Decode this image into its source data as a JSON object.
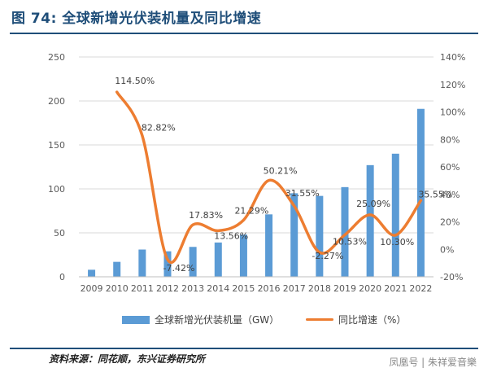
{
  "figure": {
    "title": "图 74: 全球新增光伏装机量及同比增速",
    "source": "资料来源：同花顺，东兴证券研究所",
    "watermark": "凤凰号 | 朱祥爱音樂"
  },
  "colors": {
    "bar": "#5b9bd5",
    "line": "#ed7d31",
    "title": "#1f4e79",
    "grid": "#d9d9d9",
    "axis_text": "#595959"
  },
  "chart_data": {
    "type": "bar",
    "categories": [
      "2009",
      "2010",
      "2011",
      "2012",
      "2013",
      "2014",
      "2015",
      "2016",
      "2017",
      "2018",
      "2019",
      "2020",
      "2021",
      "2022"
    ],
    "series": [
      {
        "name": "全球新增光伏装机量（GW）",
        "type": "bar",
        "axis": "left",
        "values": [
          8,
          17,
          31,
          29,
          34,
          39,
          48,
          71,
          95,
          92,
          102,
          127,
          140,
          191
        ]
      },
      {
        "name": "同比增速（%）",
        "type": "line",
        "axis": "right",
        "values": [
          null,
          114.5,
          82.82,
          -7.42,
          17.83,
          13.56,
          21.29,
          50.21,
          31.55,
          -2.27,
          10.53,
          25.09,
          10.3,
          35.55
        ],
        "labels": [
          "",
          "114.50%",
          "82.82%",
          "-7.42%",
          "17.83%",
          "13.56%",
          "21.29%",
          "50.21%",
          "31.55%",
          "-2.27%",
          "10.53%",
          "25.09%",
          "10.30%",
          "35.55%"
        ]
      }
    ],
    "y_left": {
      "min": 0,
      "max": 250,
      "ticks": [
        "0",
        "50",
        "100",
        "150",
        "200",
        "250"
      ]
    },
    "y_right": {
      "min": -20,
      "max": 140,
      "ticks": [
        "-20%",
        "0%",
        "20%",
        "40%",
        "60%",
        "80%",
        "100%",
        "120%",
        "140%"
      ]
    },
    "grid": true,
    "legend_position": "bottom"
  }
}
